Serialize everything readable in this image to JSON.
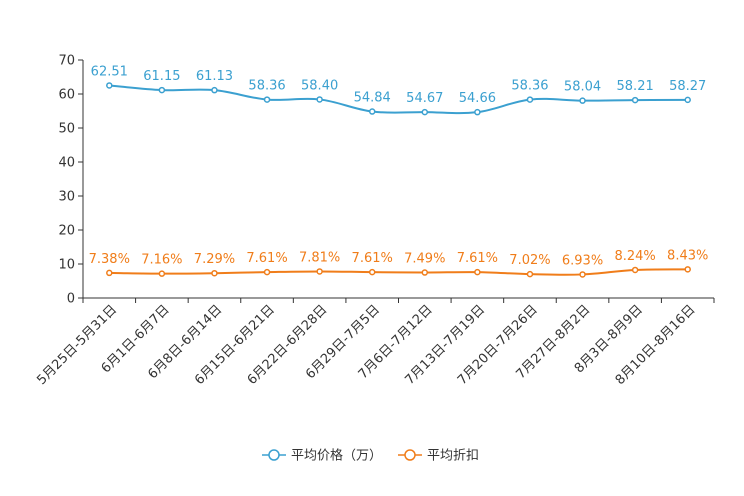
{
  "chart_data": {
    "type": "line",
    "title": "",
    "xlabel": "",
    "ylabel": "",
    "ylim": [
      0,
      70
    ],
    "yticks": [
      0,
      10,
      20,
      30,
      40,
      50,
      60,
      70
    ],
    "categories": [
      "5月25日-5月31日",
      "6月1日-6月7日",
      "6月8日-6月14日",
      "6月15日-6月21日",
      "6月22日-6月28日",
      "6月29日-7月5日",
      "7月6日-7月12日",
      "7月13日-7月19日",
      "7月20日-7月26日",
      "7月27日-8月2日",
      "8月3日-8月9日",
      "8月10日-8月16日"
    ],
    "series": [
      {
        "name": "平均价格（万）",
        "color": "#3ba0d0",
        "values": [
          62.51,
          61.15,
          61.13,
          58.36,
          58.4,
          54.84,
          54.67,
          54.66,
          58.36,
          58.04,
          58.21,
          58.27
        ],
        "labels": [
          "62.51",
          "61.15",
          "61.13",
          "58.36",
          "58.40",
          "54.84",
          "54.67",
          "54.66",
          "58.36",
          "58.04",
          "58.21",
          "58.27"
        ]
      },
      {
        "name": "平均折扣",
        "color": "#f07d1a",
        "values": [
          7.38,
          7.16,
          7.29,
          7.61,
          7.81,
          7.61,
          7.49,
          7.61,
          7.02,
          6.93,
          8.24,
          8.43
        ],
        "labels": [
          "7.38%",
          "7.16%",
          "7.29%",
          "7.61%",
          "7.81%",
          "7.61%",
          "7.49%",
          "7.61%",
          "7.02%",
          "6.93%",
          "8.24%",
          "8.43%"
        ]
      }
    ],
    "legend_position": "bottom-center"
  }
}
